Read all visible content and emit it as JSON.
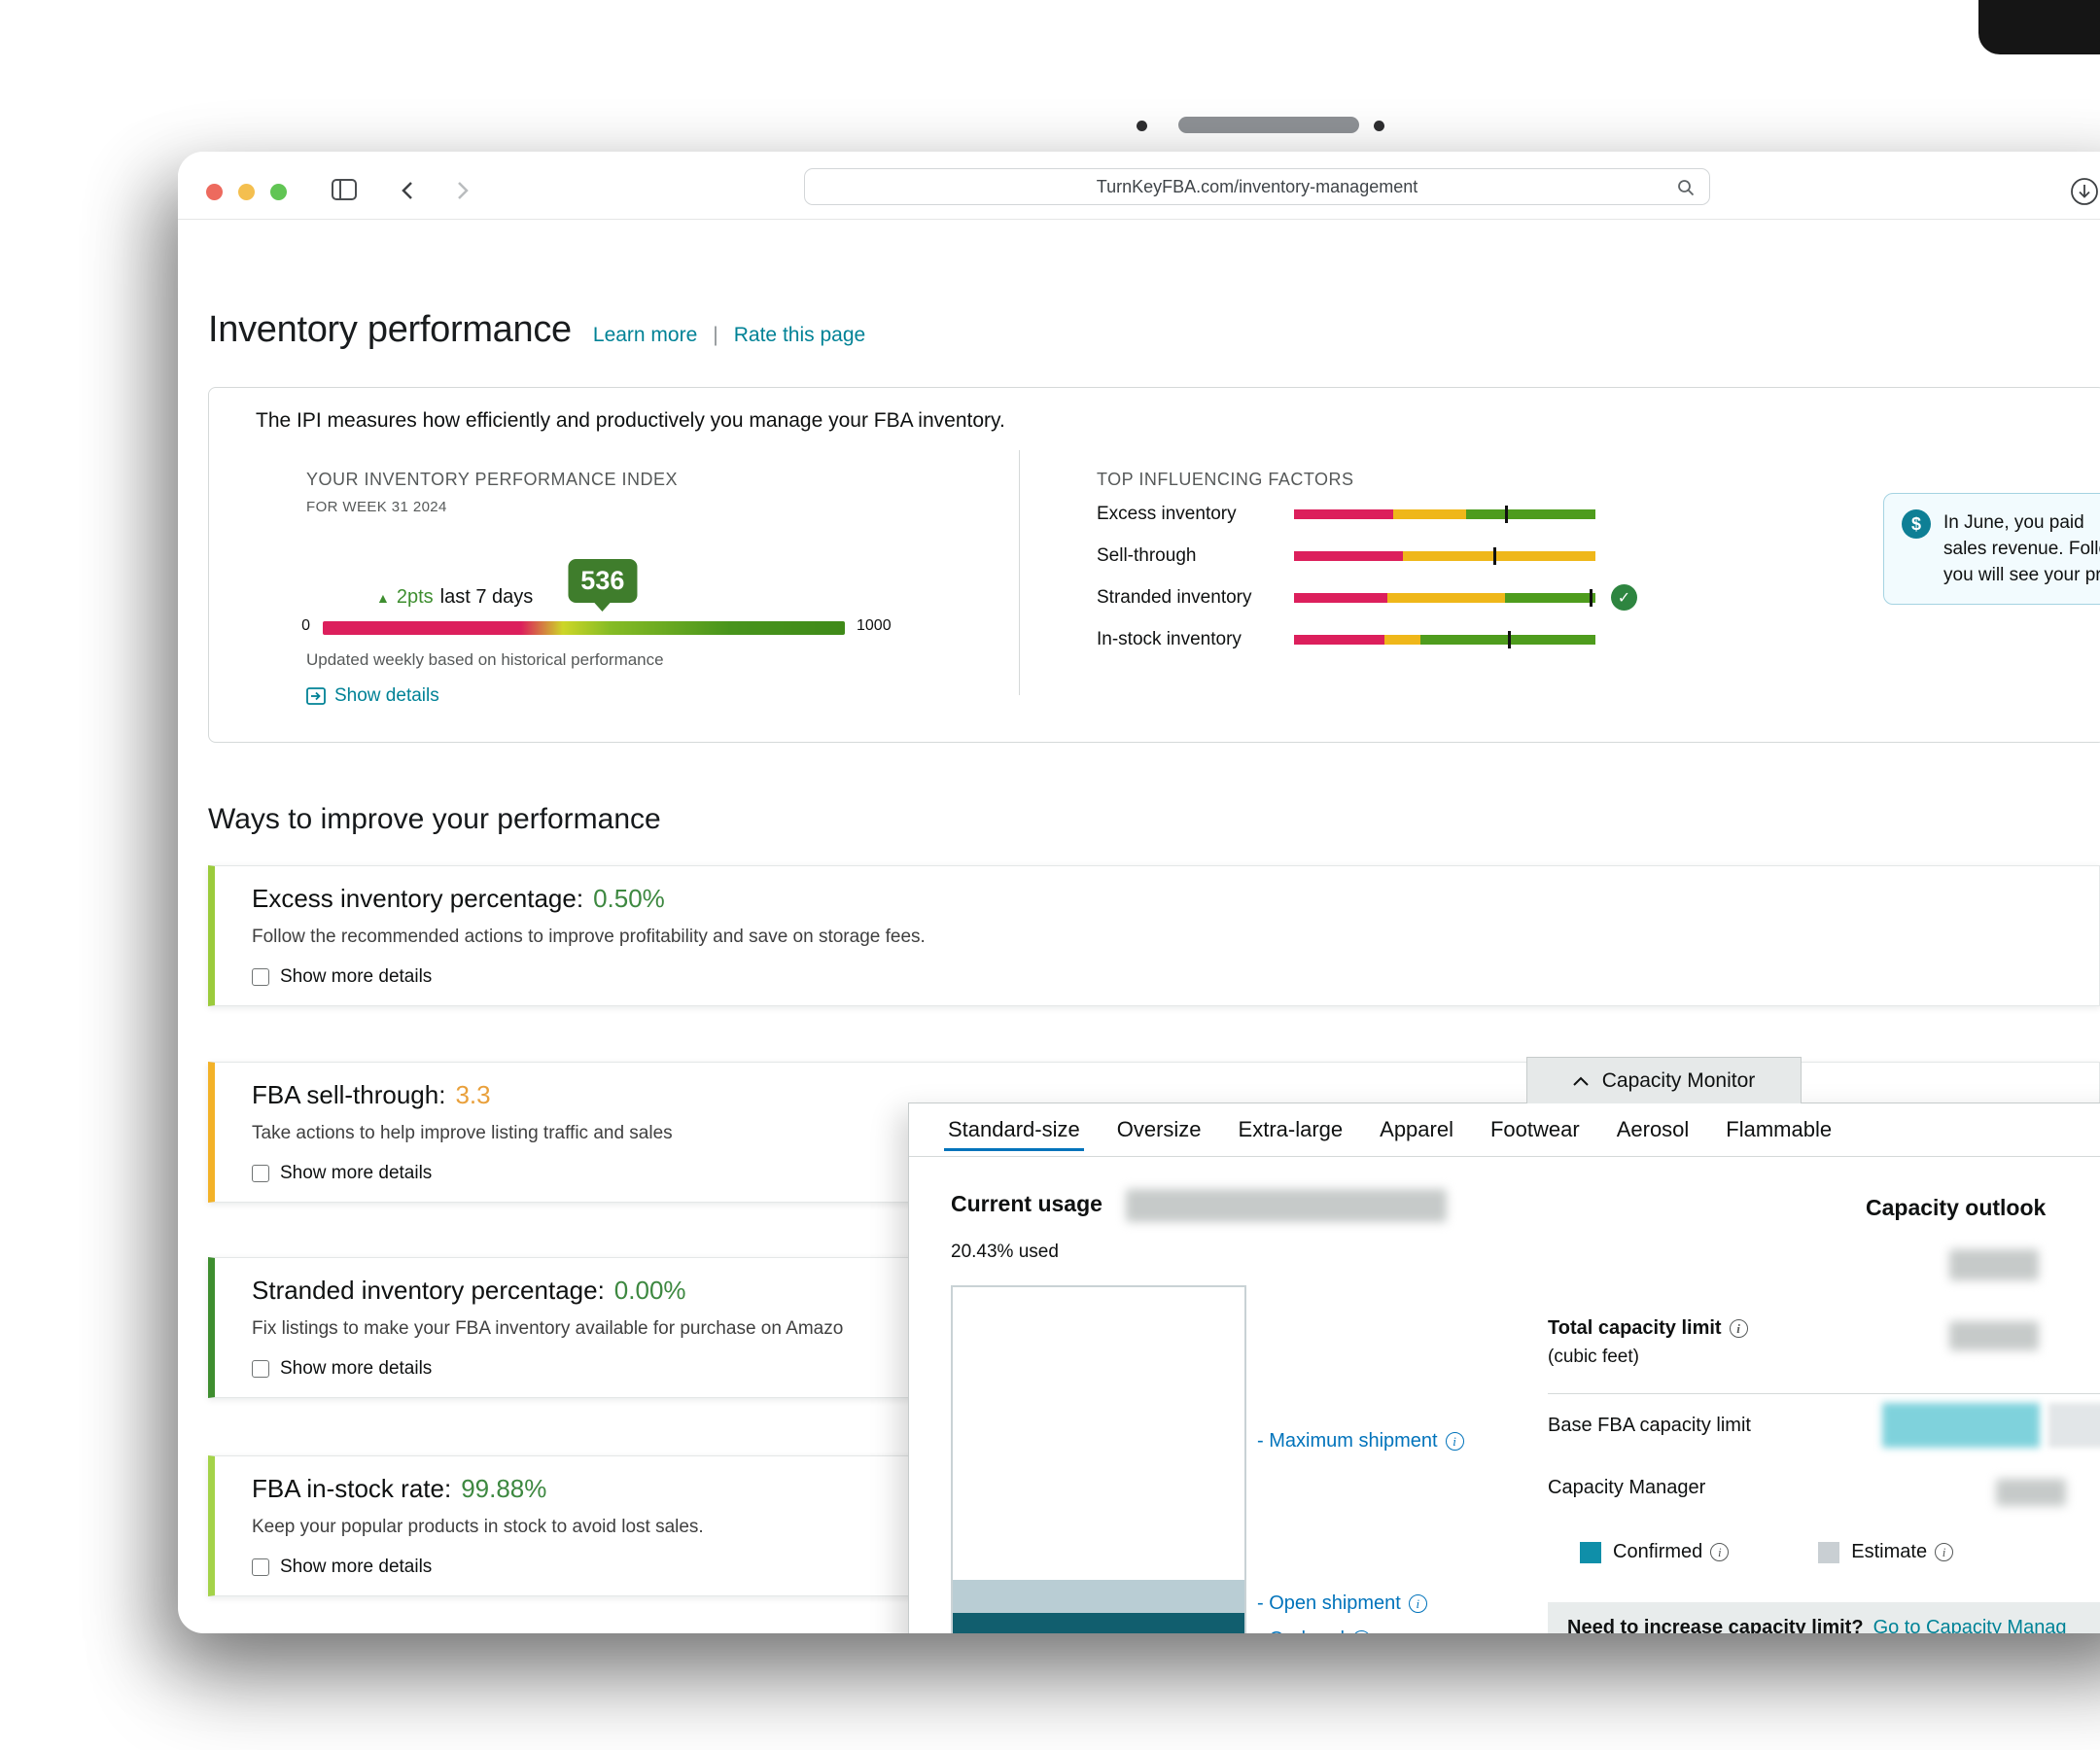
{
  "colors": {
    "link_teal": "#008296",
    "link_blue": "#0073bb",
    "bar_red": "#dc1f5c",
    "bar_yellow": "#efb71a",
    "bar_green": "#4e9c1d",
    "badge_green": "#3f7d2c",
    "onhand_teal": "#115e6e",
    "open_blue": "#b9cdd4"
  },
  "icons": {
    "delta_up": "▲",
    "check": "✓",
    "coin": "$",
    "info": "i"
  },
  "browser": {
    "url": "TurnKeyFBA.com/inventory-management"
  },
  "page": {
    "title": "Inventory performance",
    "learn_more": "Learn more",
    "separator": "|",
    "rate_this_page": "Rate this page"
  },
  "ipi": {
    "intro": "The IPI measures how efficiently and productively you manage your FBA inventory.",
    "index_heading": "YOUR INVENTORY PERFORMANCE INDEX",
    "week": "FOR WEEK 31 2024",
    "delta": "2pts",
    "delta_suffix": "last 7 days",
    "score": "536",
    "score_value": 536,
    "scale_min": "0",
    "scale_max": "1000",
    "scale_max_value": 1000,
    "updated": "Updated weekly based on historical performance",
    "show_details": "Show details",
    "factors_heading": "TOP INFLUENCING FACTORS",
    "factors": [
      {
        "label": "Excess inventory",
        "segments": [
          33,
          24,
          43
        ],
        "marker": 70,
        "check": false
      },
      {
        "label": "Sell-through",
        "segments": [
          36,
          64,
          0
        ],
        "marker": 66,
        "check": false
      },
      {
        "label": "Stranded inventory",
        "segments": [
          31,
          39,
          30
        ],
        "marker": 98,
        "check": true
      },
      {
        "label": "In-stock inventory",
        "segments": [
          30,
          12,
          58
        ],
        "marker": 71,
        "check": false
      }
    ],
    "tooltip_lines": [
      "In June, you paid",
      "sales revenue. Follow",
      "you will see your pro"
    ]
  },
  "ways": {
    "heading": "Ways to improve your performance",
    "cards": [
      {
        "title": "Excess inventory percentage:",
        "value": "0.50%",
        "value_color": "#3d8840",
        "stripe": "#9bcb3c",
        "desc": "Follow the recommended actions to improve profitability and save on storage fees.",
        "checkbox": "Show more details"
      },
      {
        "title": "FBA sell-through:",
        "value": "3.3",
        "value_color": "#e9a03b",
        "stripe": "#f3b228",
        "desc": "Take actions to help improve listing traffic and sales",
        "checkbox": "Show more details"
      },
      {
        "title": "Stranded inventory percentage:",
        "value": "0.00%",
        "value_color": "#3d8840",
        "stripe": "#3e8e2f",
        "desc": "Fix listings to make your FBA inventory available for purchase on Amazo",
        "checkbox": "Show more details"
      },
      {
        "title": "FBA in-stock rate:",
        "value": "99.88%",
        "value_color": "#3d8840",
        "stripe": "#a4d349",
        "desc": "Keep your popular products in stock to avoid lost sales.",
        "checkbox": "Show more details"
      }
    ]
  },
  "capacity": {
    "tab_title": "Capacity Monitor",
    "tabs": [
      "Standard-size",
      "Oversize",
      "Extra-large",
      "Apparel",
      "Footwear",
      "Aerosol",
      "Flammable"
    ],
    "active_tab": 0,
    "current_usage_label": "Current usage",
    "used": "20.43% used",
    "chart": {
      "open_pct": 9,
      "on_hand_pct": 10.3
    },
    "chart_labels": {
      "max": "- Maximum shipment",
      "open": "- Open shipment",
      "onhand": "- On-hand"
    },
    "outlook_label": "Capacity outlook",
    "total_label": "Total capacity limit",
    "total_sub": "(cubic feet)",
    "base_label": "Base FBA capacity limit",
    "manager_label": "Capacity Manager",
    "legend": [
      {
        "label": "Confirmed",
        "color": "#0f8fa9"
      },
      {
        "label": "Estimate",
        "color": "#c9cfd3"
      }
    ],
    "footer_question": "Need to increase capacity limit?",
    "footer_link": "Go to Capacity Manag"
  }
}
